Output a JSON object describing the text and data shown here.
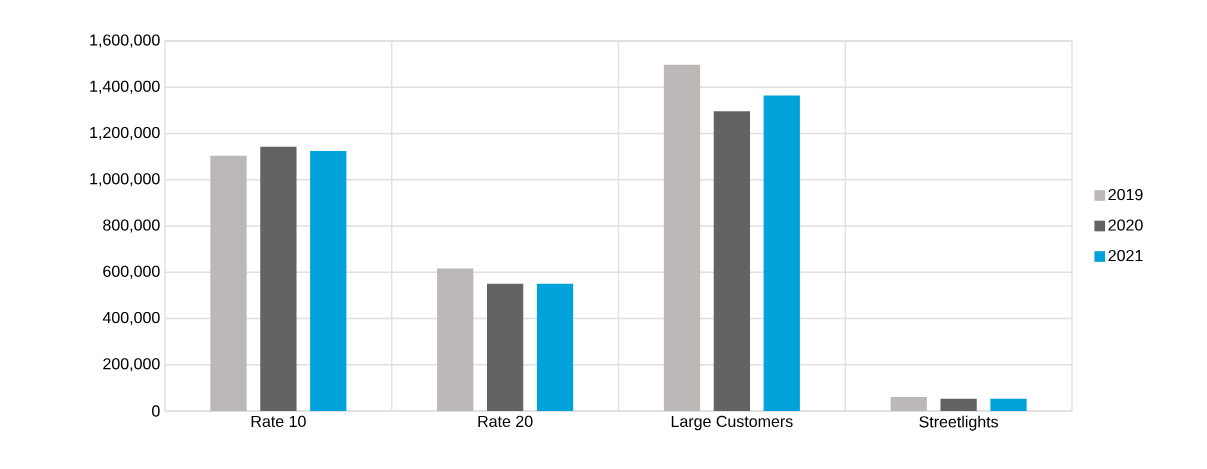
{
  "chart_data": {
    "type": "bar",
    "categories": [
      "Rate 10",
      "Rate 20",
      "Large Customers",
      "Streetlights"
    ],
    "series": [
      {
        "name": "2019",
        "color": "#bbb8b7",
        "values": [
          1104000,
          616000,
          1497000,
          61000
        ]
      },
      {
        "name": "2020",
        "color": "#636363",
        "values": [
          1143000,
          550000,
          1296000,
          53000
        ]
      },
      {
        "name": "2021",
        "color": "#00a3d9",
        "values": [
          1124000,
          550000,
          1364000,
          53000
        ]
      }
    ],
    "ylim": [
      0,
      1600000
    ],
    "yticks": [
      0,
      {
        "value": 200000,
        "label": "200,000"
      },
      {
        "value": 400000,
        "label": "400,000"
      },
      {
        "value": 600000,
        "label": "600,000"
      },
      {
        "value": 800000,
        "label": "800,000"
      },
      {
        "value": 1000000,
        "label": "1,000,000"
      },
      {
        "value": 1200000,
        "label": "1,200,000"
      },
      {
        "value": 1400000,
        "label": "1,400,000"
      },
      {
        "value": 1600000,
        "label": "1,600,000"
      }
    ],
    "grid": true,
    "legend": "right"
  }
}
